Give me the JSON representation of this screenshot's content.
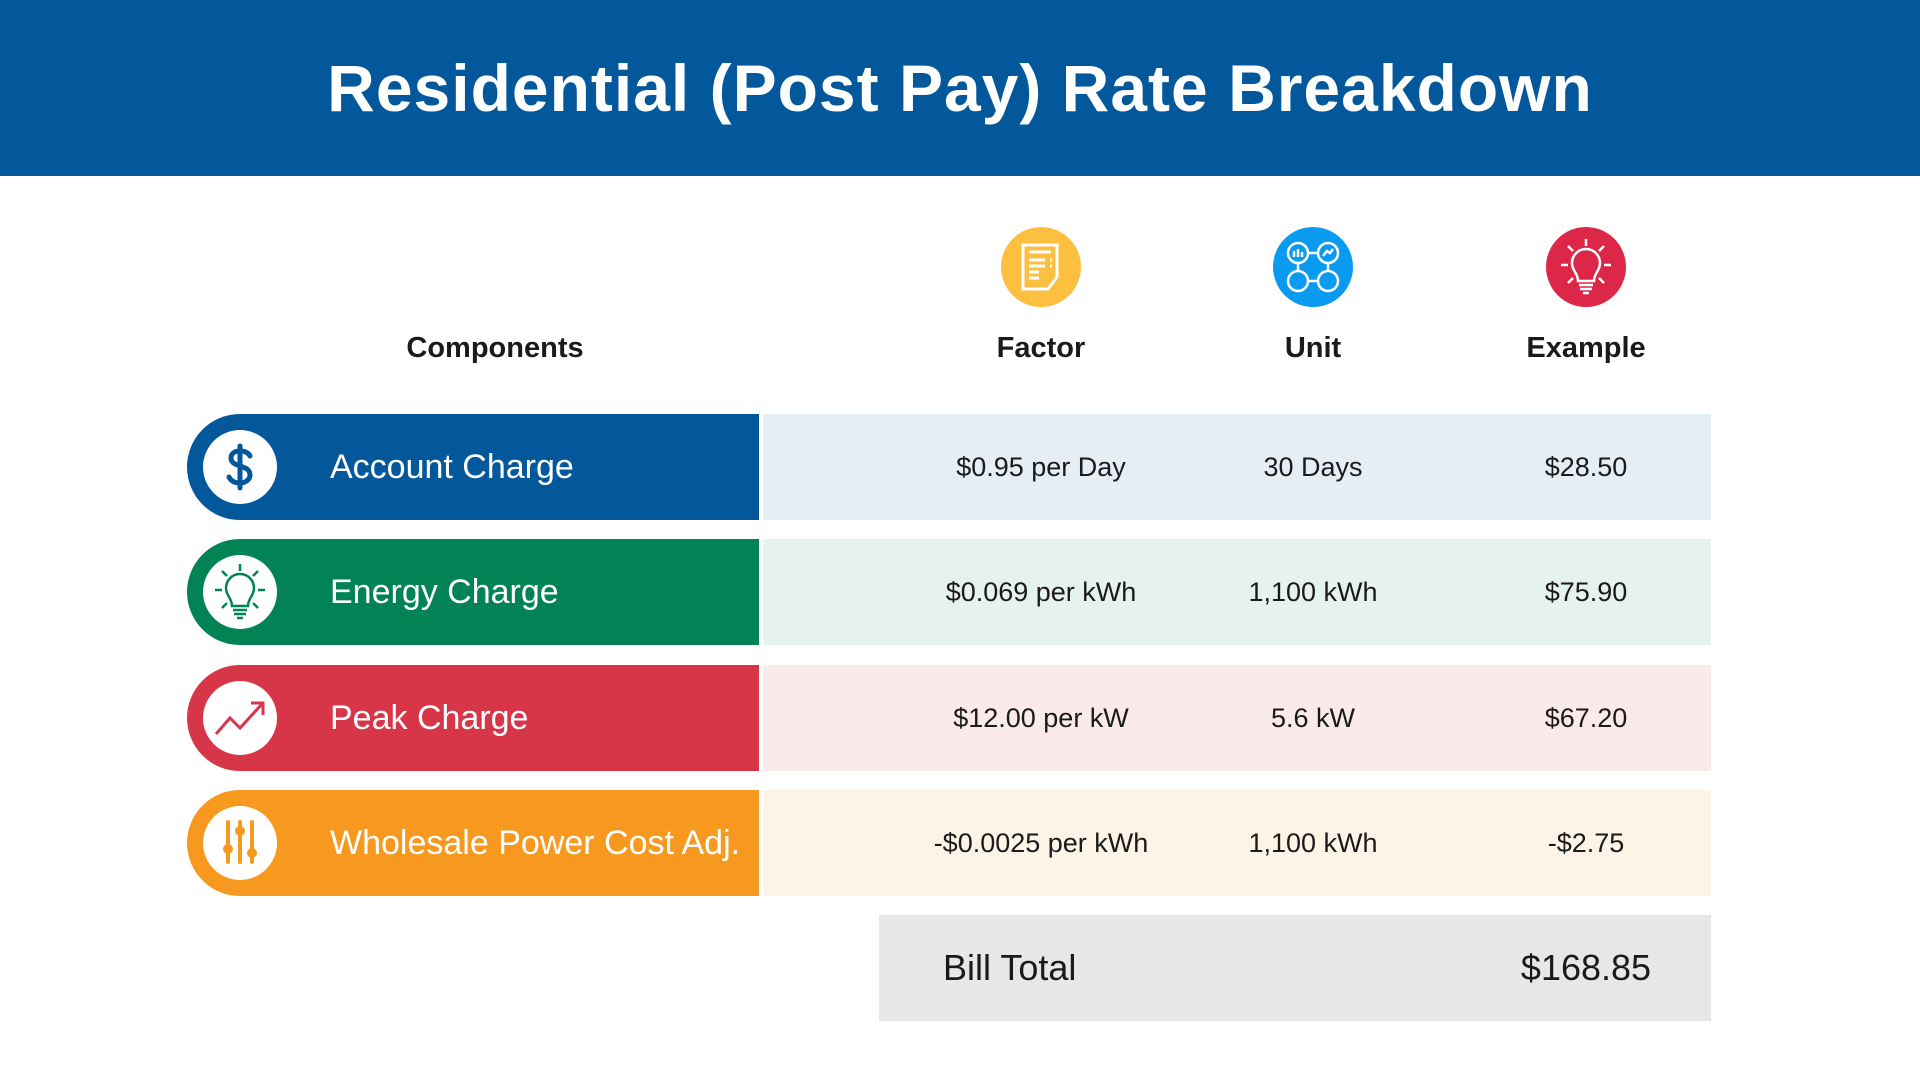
{
  "title": "Residential (Post Pay) Rate Breakdown",
  "headers": {
    "components": "Components",
    "factor": "Factor",
    "unit": "Unit",
    "example": "Example"
  },
  "colors": {
    "header": "#03589c",
    "account": "#03589c",
    "energy": "#018356",
    "peak": "#d73548",
    "wholesale": "#f7991f"
  },
  "rows": [
    {
      "label": "Account Charge",
      "factor": "$0.95 per Day",
      "unit": "30 Days",
      "example": "$28.50",
      "icon": "dollar-icon"
    },
    {
      "label": "Energy Charge",
      "factor": "$0.069 per kWh",
      "unit": "1,100 kWh",
      "example": "$75.90",
      "icon": "lightbulb-icon"
    },
    {
      "label": "Peak Charge",
      "factor": "$12.00 per kW",
      "unit": "5.6 kW",
      "example": "$67.20",
      "icon": "trend-up-icon"
    },
    {
      "label": "Wholesale Power Cost Adj.",
      "factor": "-$0.0025 per kWh",
      "unit": "1,100 kWh",
      "example": "-$2.75",
      "icon": "sliders-icon"
    }
  ],
  "total": {
    "label": "Bill Total",
    "value": "$168.85"
  }
}
